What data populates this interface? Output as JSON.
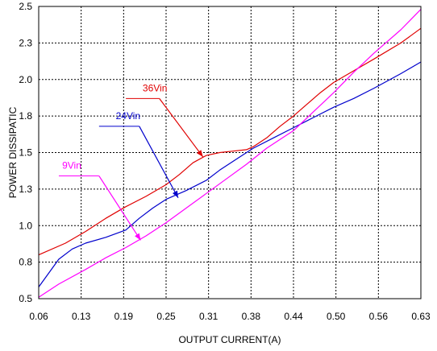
{
  "chart_data": {
    "type": "line",
    "xlabel": "OUTPUT CURRENT(A)",
    "ylabel": "POWER DISSIPATIC",
    "xlim": [
      0.06,
      0.63
    ],
    "ylim": [
      0.5,
      2.5
    ],
    "x_ticks": [
      "0.06",
      "0.13",
      "0.19",
      "0.25",
      "0.31",
      "0.38",
      "0.44",
      "0.50",
      "0.56",
      "0.63"
    ],
    "y_ticks": [
      "0.5",
      "0.8",
      "1.0",
      "1.3",
      "1.5",
      "1.8",
      "2.0",
      "2.3",
      "2.5"
    ],
    "grid": true,
    "series": [
      {
        "name": "36Vin",
        "color": "#e00000",
        "x": [
          0.06,
          0.1,
          0.13,
          0.16,
          0.19,
          0.22,
          0.25,
          0.27,
          0.29,
          0.31,
          0.33,
          0.35,
          0.37,
          0.38,
          0.4,
          0.42,
          0.44,
          0.46,
          0.48,
          0.5,
          0.53,
          0.56,
          0.6,
          0.63
        ],
        "y": [
          0.8,
          0.88,
          0.96,
          1.05,
          1.13,
          1.2,
          1.28,
          1.35,
          1.43,
          1.48,
          1.5,
          1.51,
          1.52,
          1.54,
          1.6,
          1.68,
          1.75,
          1.83,
          1.91,
          1.98,
          2.06,
          2.14,
          2.25,
          2.35
        ]
      },
      {
        "name": "24Vin",
        "color": "#0000cc",
        "x": [
          0.06,
          0.09,
          0.11,
          0.13,
          0.16,
          0.19,
          0.21,
          0.23,
          0.25,
          0.28,
          0.31,
          0.33,
          0.36,
          0.38,
          0.41,
          0.44,
          0.47,
          0.5,
          0.53,
          0.56,
          0.6,
          0.63
        ],
        "y": [
          0.58,
          0.77,
          0.84,
          0.88,
          0.92,
          0.97,
          1.05,
          1.12,
          1.18,
          1.24,
          1.31,
          1.38,
          1.47,
          1.53,
          1.6,
          1.67,
          1.74,
          1.81,
          1.87,
          1.94,
          2.04,
          2.12
        ]
      },
      {
        "name": "9Vin",
        "color": "#ff00ff",
        "x": [
          0.06,
          0.09,
          0.13,
          0.16,
          0.19,
          0.22,
          0.25,
          0.28,
          0.31,
          0.34,
          0.37,
          0.4,
          0.44,
          0.47,
          0.5,
          0.53,
          0.56,
          0.6,
          0.63
        ],
        "y": [
          0.51,
          0.6,
          0.7,
          0.78,
          0.85,
          0.93,
          1.02,
          1.12,
          1.22,
          1.32,
          1.42,
          1.53,
          1.65,
          1.78,
          1.91,
          2.05,
          2.18,
          2.34,
          2.48
        ]
      }
    ],
    "annotations": [
      {
        "text": "36Vin",
        "series": "36Vin",
        "color": "#e00000",
        "label_x": 0.215,
        "label_y": 1.92,
        "line_x": [
          0.19,
          0.24
        ],
        "line_y": 1.87,
        "arrow_to": [
          0.305,
          1.47
        ]
      },
      {
        "text": "24Vin",
        "series": "24Vin",
        "color": "#0000cc",
        "label_x": 0.175,
        "label_y": 1.73,
        "line_x": [
          0.15,
          0.21
        ],
        "line_y": 1.68,
        "arrow_to": [
          0.268,
          1.19
        ]
      },
      {
        "text": "9Vin",
        "series": "9Vin",
        "color": "#ff00ff",
        "label_x": 0.095,
        "label_y": 1.39,
        "line_x": [
          0.09,
          0.15
        ],
        "line_y": 1.34,
        "arrow_to": [
          0.212,
          0.9
        ]
      }
    ]
  }
}
